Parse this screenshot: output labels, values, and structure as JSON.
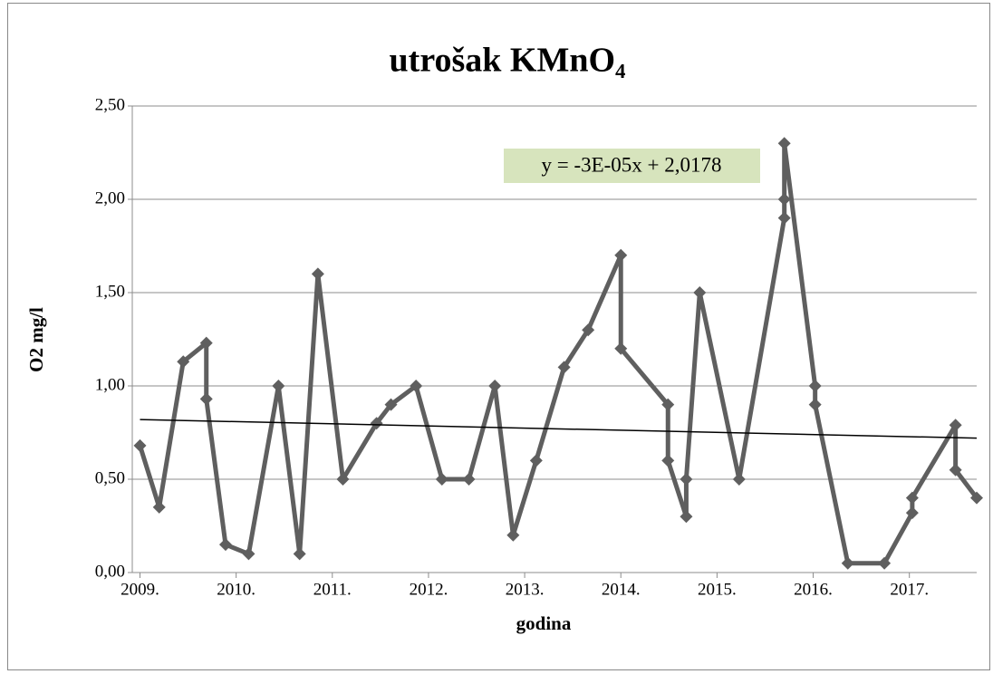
{
  "chart_data": {
    "type": "line",
    "title": "utrošak KMnO₄",
    "xlabel": "godina",
    "ylabel": "O2 mg/l",
    "x": [
      2009.0,
      2009.2,
      2009.45,
      2009.69,
      2009.69,
      2009.89,
      2010.13,
      2010.44,
      2010.66,
      2010.85,
      2011.11,
      2011.46,
      2011.61,
      2011.87,
      2012.14,
      2012.42,
      2012.69,
      2012.88,
      2013.12,
      2013.41,
      2013.66,
      2014.0,
      2014.0,
      2014.49,
      2014.49,
      2014.68,
      2014.68,
      2014.82,
      2015.23,
      2015.7,
      2015.7,
      2015.7,
      2016.02,
      2016.02,
      2016.36,
      2016.74,
      2017.03,
      2017.03,
      2017.48,
      2017.48,
      2017.7
    ],
    "series": [
      {
        "color": "#5f5f5f",
        "values": [
          0.68,
          0.35,
          1.13,
          1.23,
          0.93,
          0.15,
          0.1,
          1.0,
          0.1,
          1.6,
          0.5,
          0.8,
          0.9,
          1.0,
          0.5,
          0.5,
          1.0,
          0.2,
          0.6,
          1.1,
          1.3,
          1.7,
          1.2,
          0.9,
          0.6,
          0.3,
          0.5,
          1.5,
          0.5,
          1.9,
          2.0,
          2.3,
          1.0,
          0.9,
          0.05,
          0.05,
          0.32,
          0.4,
          0.79,
          0.55,
          0.4
        ]
      }
    ],
    "trendline": {
      "equation": "y = -3E-05x + 2,0178",
      "color": "#000000",
      "x": [
        2009.0,
        2017.7
      ],
      "values": [
        0.82,
        0.72
      ]
    },
    "xlim": [
      2008.92,
      2017.7
    ],
    "xticks": [
      {
        "value": 2009,
        "label": "2009."
      },
      {
        "value": 2010,
        "label": "2010."
      },
      {
        "value": 2011,
        "label": "2011."
      },
      {
        "value": 2012,
        "label": "2012."
      },
      {
        "value": 2013,
        "label": "2013."
      },
      {
        "value": 2014,
        "label": "2014."
      },
      {
        "value": 2015,
        "label": "2015."
      },
      {
        "value": 2016,
        "label": "2016."
      },
      {
        "value": 2017,
        "label": "2017."
      }
    ],
    "ylim": [
      0,
      2.5
    ],
    "yticks": [
      {
        "value": 0,
        "label": "0,00"
      },
      {
        "value": 0.5,
        "label": "0,50"
      },
      {
        "value": 1,
        "label": "1,00"
      },
      {
        "value": 1.5,
        "label": "1,50"
      },
      {
        "value": 2,
        "label": "2,00"
      },
      {
        "value": 2.5,
        "label": "2,50"
      }
    ],
    "grid": true
  }
}
